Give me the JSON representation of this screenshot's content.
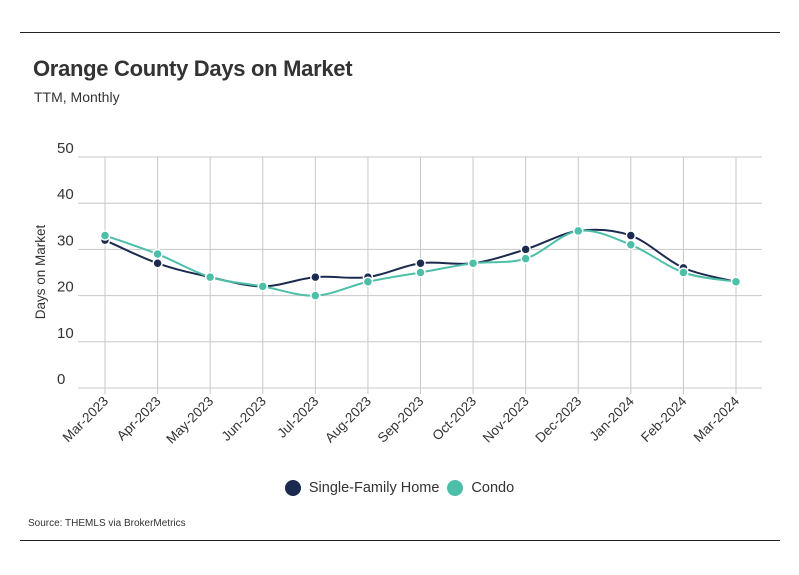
{
  "title": "Orange County Days on Market",
  "subtitle": "TTM, Monthly",
  "source": "Source:  THEMLS via BrokerMetrics",
  "colors": {
    "single_family": "#1b2a4e",
    "condo": "#4dbfa8",
    "grid": "#c8c8c8",
    "rule": "#222222"
  },
  "chart_data": {
    "type": "line",
    "title": "Orange County Days on Market",
    "subtitle": "TTM, Monthly",
    "xlabel": "",
    "ylabel": "Days on Market",
    "ylim": [
      0,
      50
    ],
    "yticks": [
      0,
      10,
      20,
      30,
      40,
      50
    ],
    "grid": true,
    "legend_position": "bottom-center",
    "categories": [
      "Mar-2023",
      "Apr-2023",
      "May-2023",
      "Jun-2023",
      "Jul-2023",
      "Aug-2023",
      "Sep-2023",
      "Oct-2023",
      "Nov-2023",
      "Dec-2023",
      "Jan-2024",
      "Feb-2024",
      "Mar-2024"
    ],
    "series": [
      {
        "name": "Single-Family Home",
        "color": "#1b2a4e",
        "values": [
          32,
          27,
          24,
          22,
          24,
          24,
          27,
          27,
          30,
          34,
          33,
          26,
          23
        ]
      },
      {
        "name": "Condo",
        "color": "#4dbfa8",
        "values": [
          33,
          29,
          24,
          22,
          20,
          23,
          25,
          27,
          28,
          34,
          31,
          25,
          23
        ]
      }
    ]
  }
}
